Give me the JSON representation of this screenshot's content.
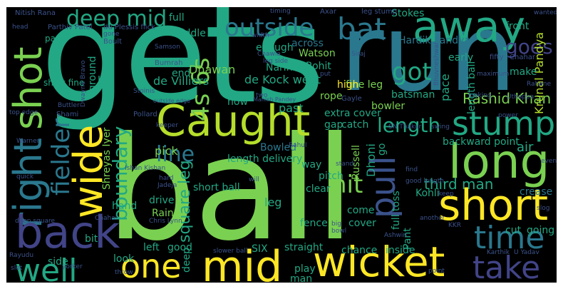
{
  "colors": {
    "background": "#000000",
    "green_bright": "#7ad151",
    "green": "#22a884",
    "teal": "#2a788e",
    "indigo": "#414487",
    "purple": "#440154",
    "yellow": "#fde725",
    "lime": "#b5de2b",
    "dim": "#3b528b"
  },
  "words": {
    "gets": "gets",
    "run": "run",
    "ball": "ball",
    "caught": "Caught",
    "away": "away",
    "bat": "bat",
    "deep_mid": "deep mid",
    "outside": "outside",
    "goes": "goes",
    "right": "right",
    "shot": "shot",
    "stump": "stump",
    "long": "long",
    "wide": "wide",
    "back": "back",
    "short": "short",
    "pull": "pull",
    "time": "time",
    "take": "take",
    "one": "one",
    "mid": "mid",
    "wicket": "wicket",
    "well": "well",
    "got": "got",
    "fours_sixes": "4s 6s",
    "fielder": "fielder",
    "boundary": "boundary",
    "line": "line",
    "hit": "hit",
    "third_man": "third man",
    "square_leg": "square leg",
    "length": "length",
    "rashid_khan": "Rashid Khan",
    "krunal_pandya": "Krunal Pandya",
    "hardik_pandya": "Hardik Pandya",
    "dhawan": "Dhawan",
    "de_villiers": "de Villiers",
    "de_kock_went": "de Kock went",
    "rohit": "Rohit",
    "narine": "Narine",
    "watson": "Watson",
    "stokes": "Stokes",
    "front": "front",
    "early": "early",
    "pace": "pace",
    "length_ball": "length ball",
    "fine_leg": "fine leg",
    "batsman": "batsman",
    "bowler": "bowler",
    "high": "high",
    "rope": "rope",
    "past": "past",
    "now": "now",
    "enough": "enough",
    "across": "across",
    "middle": "middle",
    "full": "full",
    "ground": "ground",
    "loft": "loft",
    "end": "end",
    "pick": "pick",
    "air": "air",
    "backward_point": "backward point",
    "extra_cover": "extra cover",
    "gap": "gap",
    "catch": "catch",
    "bowled": "Bowled",
    "length_delivery": "length delivery",
    "russell": "Russell",
    "dhoni": "Dhoni",
    "go": "go",
    "clear": "clear",
    "pitch": "pitch",
    "short_ball": "short ball",
    "drive": "drive",
    "raina": "Raina",
    "kohli": "Kohli",
    "crease": "crease",
    "shreyas_iyer": "Shreyas Iyer",
    "fence": "fence",
    "cover": "cover",
    "come": "come",
    "full_toss": "full toss",
    "way": "way",
    "leg": "leg",
    "hand": "hand",
    "bit": "bit",
    "cut": "cut",
    "going": "going",
    "left": "left",
    "good": "good",
    "chance": "chance",
    "straight": "straight",
    "play": "play",
    "man": "man",
    "six": "SIX",
    "inside": "inside",
    "pant": "Pant",
    "look": "look",
    "deep": "deep",
    "side": "side",
    "make": "make",
    "nitish_rana": "Nitish Rana",
    "parthiv_patel": "Parthiv Patel",
    "du_plessis_flick": "du Plessis flick",
    "pad": "pad",
    "short_fine": "short fine",
    "leg_stump": "leg stump",
    "timing": "timing",
    "axar": "Axar",
    "wanted": "wanted",
    "fifty": "fifty",
    "chahar": "Chahar",
    "rahane": "Rahane",
    "bumrah": "Bumrah",
    "samson": "Samson",
    "boult": "Boult",
    "shami": "Shami",
    "butler": "Buttler",
    "pollard": "Pollard",
    "gayle": "Gayle",
    "siraj": "Siraj",
    "rahul": "Rahul",
    "sn_thakur": "SN Thakur",
    "jadeja": "Jadeja",
    "chahal": "Chahal",
    "ishan_kishan": "Ishan Kishan",
    "chris_lynn": "Chris Lynn",
    "karthik": "Karthik",
    "u_yadav": "U Yadav",
    "kkr": "KKR",
    "ashwin": "Ashwin",
    "rayudu": "Rayudu",
    "deep_square": "deep square",
    "yorker": "yorker",
    "top_edge": "top edge",
    "warner": "Warner",
    "stoinis": "Stoinis",
    "keeper": "keeper",
    "stand": "stand",
    "find": "find",
    "point": "point",
    "swing": "swing",
    "dwayne_bravo": "Dwayne Bravo",
    "maximum": "maximum",
    "looking": "looking",
    "uthappa": "Uthappa",
    "power": "power",
    "even": "even",
    "slower_ball": "slower ball",
    "width": "width",
    "two": "two",
    "hard": "hard",
    "will": "will",
    "quick": "quick",
    "head": "head",
    "gone": "gone",
    "put": "put",
    "leg_side": "leg side",
    "outside_edge": "outside edge",
    "manish_pandey": "Manish Pandey",
    "chawla": "Chawla",
    "bhuvneshwar": "Bhuvneshwar",
    "good_length": "good length",
    "another": "another",
    "big": "big",
    "bowl": "bowl",
    "slot": "slot",
    "keep": "keep",
    "slog": "slog",
    "throw": "throw"
  }
}
